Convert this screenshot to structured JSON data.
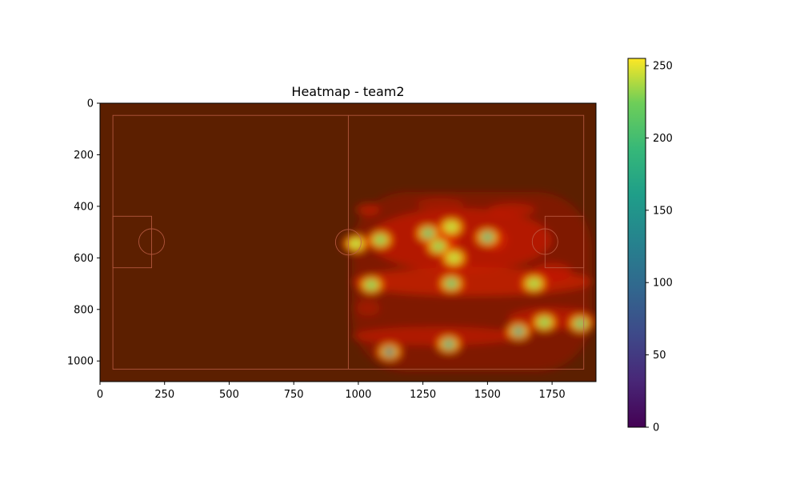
{
  "chart_data": {
    "type": "heatmap",
    "title": "Heatmap - team2",
    "xlim": [
      0,
      1920
    ],
    "ylim": [
      1080,
      0
    ],
    "x_ticks": [
      0,
      250,
      500,
      750,
      1000,
      1250,
      1500,
      1750
    ],
    "y_ticks": [
      0,
      200,
      400,
      600,
      800,
      1000
    ],
    "colorbar": {
      "colormap": "viridis",
      "range": [
        0,
        255
      ],
      "ticks": [
        0,
        50,
        100,
        150,
        200,
        250
      ]
    },
    "pitch_line_color": "#c06048",
    "background_color": "#5c1f00",
    "hotspots": [
      {
        "x": 1120,
        "y": 965,
        "value": 55
      },
      {
        "x": 1350,
        "y": 935,
        "value": 135
      },
      {
        "x": 1620,
        "y": 885,
        "value": 120
      },
      {
        "x": 1270,
        "y": 505,
        "value": 175
      },
      {
        "x": 1500,
        "y": 520,
        "value": 150
      },
      {
        "x": 1360,
        "y": 700,
        "value": 175
      },
      {
        "x": 1860,
        "y": 855,
        "value": 175
      },
      {
        "x": 1720,
        "y": 850,
        "value": 205
      },
      {
        "x": 1085,
        "y": 530,
        "value": 200
      },
      {
        "x": 1050,
        "y": 705,
        "value": 200
      },
      {
        "x": 1310,
        "y": 555,
        "value": 205
      },
      {
        "x": 1680,
        "y": 700,
        "value": 215
      },
      {
        "x": 1360,
        "y": 480,
        "value": 225
      },
      {
        "x": 1370,
        "y": 600,
        "value": 225
      },
      {
        "x": 990,
        "y": 545,
        "value": 225
      }
    ]
  }
}
